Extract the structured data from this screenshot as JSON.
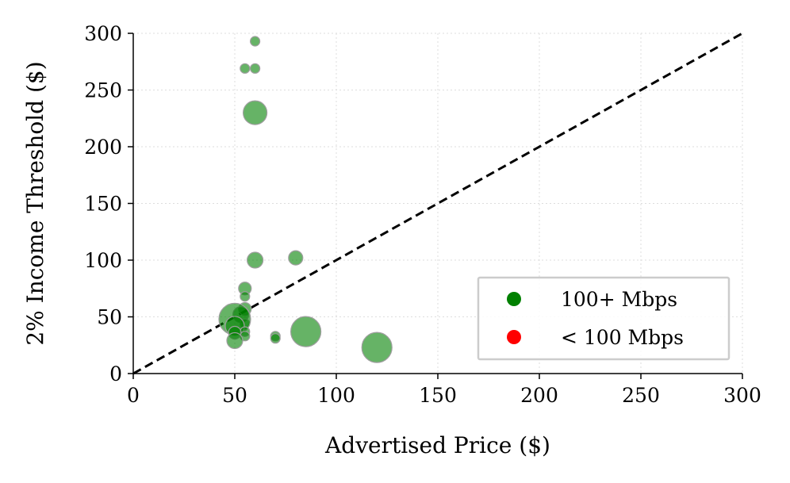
{
  "chart_data": {
    "type": "scatter",
    "xlabel": "Advertised Price ($)",
    "ylabel": "2% Income Threshold ($)",
    "xlim": [
      0,
      300
    ],
    "ylim": [
      0,
      300
    ],
    "xticks": [
      "0",
      "50",
      "100",
      "150",
      "200",
      "250",
      "300"
    ],
    "yticks": [
      "0",
      "50",
      "100",
      "150",
      "200",
      "250",
      "300"
    ],
    "grid": true,
    "legend_position": "lower-right",
    "reference_line": {
      "style": "dashed",
      "color": "#000000",
      "from": [
        0,
        0
      ],
      "to": [
        300,
        300
      ]
    },
    "series": [
      {
        "name": "100+ Mbps",
        "color": "#008000",
        "points": [
          {
            "x": 60,
            "y": 293,
            "size": 6
          },
          {
            "x": 55,
            "y": 269,
            "size": 6
          },
          {
            "x": 60,
            "y": 269,
            "size": 6
          },
          {
            "x": 60,
            "y": 230,
            "size": 15
          },
          {
            "x": 60,
            "y": 100,
            "size": 10
          },
          {
            "x": 80,
            "y": 102,
            "size": 9
          },
          {
            "x": 55,
            "y": 75,
            "size": 8
          },
          {
            "x": 55,
            "y": 68,
            "size": 6
          },
          {
            "x": 55,
            "y": 57,
            "size": 8
          },
          {
            "x": 53,
            "y": 52,
            "size": 10
          },
          {
            "x": 55,
            "y": 44,
            "size": 6
          },
          {
            "x": 50,
            "y": 48,
            "size": 20
          },
          {
            "x": 50,
            "y": 42,
            "size": 12
          },
          {
            "x": 55,
            "y": 37,
            "size": 6
          },
          {
            "x": 50,
            "y": 36,
            "size": 8
          },
          {
            "x": 55,
            "y": 33,
            "size": 6
          },
          {
            "x": 50,
            "y": 29,
            "size": 10
          },
          {
            "x": 70,
            "y": 33,
            "size": 6
          },
          {
            "x": 70,
            "y": 31,
            "size": 6
          },
          {
            "x": 85,
            "y": 37,
            "size": 19
          },
          {
            "x": 120,
            "y": 23,
            "size": 19
          }
        ]
      },
      {
        "name": "< 100 Mbps",
        "color": "#ff0000",
        "points": []
      }
    ]
  }
}
